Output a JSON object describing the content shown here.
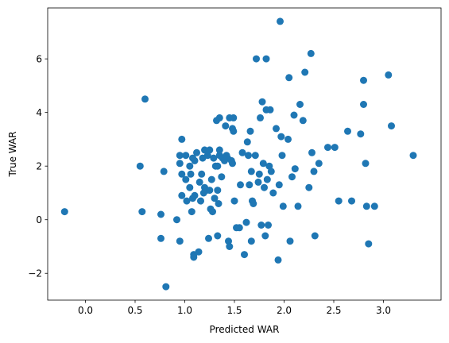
{
  "chart_data": {
    "type": "scatter",
    "title": "",
    "xlabel": "Predicted WAR",
    "ylabel": "True WAR",
    "xlim": [
      -0.38,
      3.58
    ],
    "ylim": [
      -3.0,
      7.9
    ],
    "xticks": [
      0.0,
      0.5,
      1.0,
      1.5,
      2.0,
      2.5,
      3.0
    ],
    "yticks": [
      -2,
      0,
      2,
      4,
      6
    ],
    "xtick_labels": [
      "0.0",
      "0.5",
      "1.0",
      "1.5",
      "2.0",
      "2.5",
      "3.0"
    ],
    "ytick_labels": [
      "−2",
      "0",
      "2",
      "4",
      "6"
    ],
    "grid": false,
    "legend": false,
    "marker_color": "#1f77b4",
    "points": [
      {
        "x": -0.21,
        "y": 0.3
      },
      {
        "x": 0.55,
        "y": 2.0
      },
      {
        "x": 0.57,
        "y": 0.3
      },
      {
        "x": 0.6,
        "y": 4.5
      },
      {
        "x": 0.76,
        "y": 0.2
      },
      {
        "x": 0.76,
        "y": -0.7
      },
      {
        "x": 0.79,
        "y": 1.8
      },
      {
        "x": 0.81,
        "y": -2.5
      },
      {
        "x": 0.92,
        "y": 0.0
      },
      {
        "x": 0.95,
        "y": 2.1
      },
      {
        "x": 0.95,
        "y": 2.4
      },
      {
        "x": 0.95,
        "y": -0.8
      },
      {
        "x": 0.97,
        "y": 3.0
      },
      {
        "x": 0.97,
        "y": 1.7
      },
      {
        "x": 0.97,
        "y": 0.9
      },
      {
        "x": 1.01,
        "y": 2.4
      },
      {
        "x": 1.01,
        "y": 1.5
      },
      {
        "x": 1.02,
        "y": 0.7
      },
      {
        "x": 1.05,
        "y": 2.0
      },
      {
        "x": 1.05,
        "y": 1.2
      },
      {
        "x": 1.06,
        "y": 1.7
      },
      {
        "x": 1.07,
        "y": 0.3
      },
      {
        "x": 1.08,
        "y": 2.3
      },
      {
        "x": 1.08,
        "y": 0.8
      },
      {
        "x": 1.09,
        "y": -1.3
      },
      {
        "x": 1.09,
        "y": -1.4
      },
      {
        "x": 1.1,
        "y": 2.2
      },
      {
        "x": 1.1,
        "y": 0.9
      },
      {
        "x": 1.12,
        "y": 2.5
      },
      {
        "x": 1.14,
        "y": -1.2
      },
      {
        "x": 1.15,
        "y": 1.4
      },
      {
        "x": 1.16,
        "y": 0.7
      },
      {
        "x": 1.17,
        "y": 1.7
      },
      {
        "x": 1.18,
        "y": 2.3
      },
      {
        "x": 1.19,
        "y": 1.0
      },
      {
        "x": 1.2,
        "y": 2.6
      },
      {
        "x": 1.2,
        "y": 1.2
      },
      {
        "x": 1.22,
        "y": 1.1
      },
      {
        "x": 1.23,
        "y": 2.4
      },
      {
        "x": 1.24,
        "y": -0.7
      },
      {
        "x": 1.25,
        "y": 2.6
      },
      {
        "x": 1.25,
        "y": 1.1
      },
      {
        "x": 1.26,
        "y": 0.4
      },
      {
        "x": 1.27,
        "y": 1.5
      },
      {
        "x": 1.28,
        "y": 0.3
      },
      {
        "x": 1.29,
        "y": 2.3
      },
      {
        "x": 1.3,
        "y": 0.8
      },
      {
        "x": 1.31,
        "y": 2.0
      },
      {
        "x": 1.32,
        "y": 3.7
      },
      {
        "x": 1.33,
        "y": 2.0
      },
      {
        "x": 1.33,
        "y": 1.1
      },
      {
        "x": 1.33,
        "y": -0.6
      },
      {
        "x": 1.34,
        "y": 0.6
      },
      {
        "x": 1.35,
        "y": 3.8
      },
      {
        "x": 1.35,
        "y": 2.6
      },
      {
        "x": 1.35,
        "y": 2.4
      },
      {
        "x": 1.37,
        "y": 1.6
      },
      {
        "x": 1.38,
        "y": 2.3
      },
      {
        "x": 1.4,
        "y": 2.2
      },
      {
        "x": 1.41,
        "y": 3.5
      },
      {
        "x": 1.42,
        "y": 2.4
      },
      {
        "x": 1.43,
        "y": 2.3
      },
      {
        "x": 1.44,
        "y": -0.8
      },
      {
        "x": 1.45,
        "y": 3.8
      },
      {
        "x": 1.45,
        "y": -1.0
      },
      {
        "x": 1.47,
        "y": 2.2
      },
      {
        "x": 1.48,
        "y": 3.4
      },
      {
        "x": 1.48,
        "y": 2.1
      },
      {
        "x": 1.49,
        "y": 3.3
      },
      {
        "x": 1.49,
        "y": 3.8
      },
      {
        "x": 1.5,
        "y": 0.7
      },
      {
        "x": 1.52,
        "y": -0.3
      },
      {
        "x": 1.55,
        "y": -0.3
      },
      {
        "x": 1.56,
        "y": 1.3
      },
      {
        "x": 1.58,
        "y": 2.5
      },
      {
        "x": 1.6,
        "y": -1.3
      },
      {
        "x": 1.62,
        "y": -0.1
      },
      {
        "x": 1.63,
        "y": 2.9
      },
      {
        "x": 1.64,
        "y": 2.4
      },
      {
        "x": 1.65,
        "y": 1.3
      },
      {
        "x": 1.66,
        "y": 3.3
      },
      {
        "x": 1.67,
        "y": 1.8
      },
      {
        "x": 1.67,
        "y": -0.8
      },
      {
        "x": 1.68,
        "y": 0.7
      },
      {
        "x": 1.69,
        "y": 0.6
      },
      {
        "x": 1.71,
        "y": 2.4
      },
      {
        "x": 1.72,
        "y": 6.0
      },
      {
        "x": 1.74,
        "y": 1.4
      },
      {
        "x": 1.75,
        "y": 1.7
      },
      {
        "x": 1.76,
        "y": 3.8
      },
      {
        "x": 1.77,
        "y": -0.2
      },
      {
        "x": 1.78,
        "y": 4.4
      },
      {
        "x": 1.79,
        "y": 2.1
      },
      {
        "x": 1.8,
        "y": 1.2
      },
      {
        "x": 1.81,
        "y": -0.6
      },
      {
        "x": 1.82,
        "y": 6.0
      },
      {
        "x": 1.82,
        "y": 4.1
      },
      {
        "x": 1.83,
        "y": 1.5
      },
      {
        "x": 1.84,
        "y": -0.2
      },
      {
        "x": 1.85,
        "y": 2.0
      },
      {
        "x": 1.86,
        "y": 4.1
      },
      {
        "x": 1.87,
        "y": 1.8
      },
      {
        "x": 1.89,
        "y": 1.0
      },
      {
        "x": 1.92,
        "y": 3.4
      },
      {
        "x": 1.94,
        "y": -1.5
      },
      {
        "x": 1.95,
        "y": 1.3
      },
      {
        "x": 1.96,
        "y": 7.4
      },
      {
        "x": 1.97,
        "y": 3.1
      },
      {
        "x": 1.98,
        "y": 2.4
      },
      {
        "x": 1.99,
        "y": 0.5
      },
      {
        "x": 2.04,
        "y": 3.0
      },
      {
        "x": 2.05,
        "y": 5.3
      },
      {
        "x": 2.06,
        "y": -0.8
      },
      {
        "x": 2.08,
        "y": 1.6
      },
      {
        "x": 2.1,
        "y": 3.9
      },
      {
        "x": 2.11,
        "y": 1.9
      },
      {
        "x": 2.14,
        "y": 0.5
      },
      {
        "x": 2.16,
        "y": 4.3
      },
      {
        "x": 2.19,
        "y": 3.7
      },
      {
        "x": 2.21,
        "y": 5.5
      },
      {
        "x": 2.25,
        "y": 1.2
      },
      {
        "x": 2.27,
        "y": 6.2
      },
      {
        "x": 2.28,
        "y": 2.5
      },
      {
        "x": 2.3,
        "y": 1.8
      },
      {
        "x": 2.31,
        "y": -0.6
      },
      {
        "x": 2.35,
        "y": 2.1
      },
      {
        "x": 2.44,
        "y": 2.7
      },
      {
        "x": 2.51,
        "y": 2.7
      },
      {
        "x": 2.55,
        "y": 0.7
      },
      {
        "x": 2.64,
        "y": 3.3
      },
      {
        "x": 2.68,
        "y": 0.7
      },
      {
        "x": 2.77,
        "y": 3.2
      },
      {
        "x": 2.8,
        "y": 5.2
      },
      {
        "x": 2.8,
        "y": 4.3
      },
      {
        "x": 2.82,
        "y": 2.1
      },
      {
        "x": 2.83,
        "y": 0.5
      },
      {
        "x": 2.85,
        "y": -0.9
      },
      {
        "x": 2.91,
        "y": 0.5
      },
      {
        "x": 3.05,
        "y": 5.4
      },
      {
        "x": 3.08,
        "y": 3.5
      },
      {
        "x": 3.3,
        "y": 2.4
      }
    ]
  }
}
